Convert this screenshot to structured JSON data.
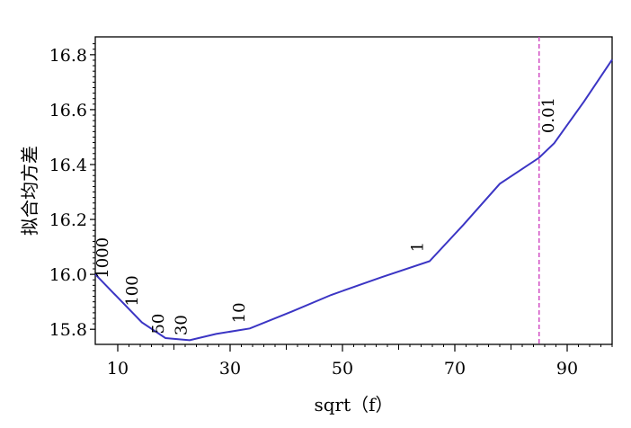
{
  "chart_data": {
    "type": "line",
    "xlabel": "sqrt（f）",
    "ylabel": "拟合均方差",
    "xlim": [
      6,
      98
    ],
    "ylim": [
      15.745,
      16.865
    ],
    "x_ticks": [
      10,
      30,
      50,
      70,
      90
    ],
    "y_ticks": [
      15.8,
      16.0,
      16.2,
      16.4,
      16.6,
      16.8
    ],
    "y_tick_labels": [
      "15.8",
      "16.0",
      "16.2",
      "16.4",
      "16.6",
      "16.8"
    ],
    "grid": false,
    "series": [
      {
        "color": "#3b35c4",
        "points": [
          {
            "x": 6,
            "y": 16.0
          },
          {
            "x": 14.3,
            "y": 15.825
          },
          {
            "x": 18.5,
            "y": 15.768
          },
          {
            "x": 22.8,
            "y": 15.76
          },
          {
            "x": 27.5,
            "y": 15.783
          },
          {
            "x": 33.5,
            "y": 15.803
          },
          {
            "x": 41,
            "y": 15.865
          },
          {
            "x": 48,
            "y": 15.925
          },
          {
            "x": 57,
            "y": 15.99
          },
          {
            "x": 65.5,
            "y": 16.048
          },
          {
            "x": 71.5,
            "y": 16.18
          },
          {
            "x": 78,
            "y": 16.33
          },
          {
            "x": 85,
            "y": 16.425
          },
          {
            "x": 87.7,
            "y": 16.478
          },
          {
            "x": 93,
            "y": 16.63
          },
          {
            "x": 98,
            "y": 16.782
          }
        ]
      }
    ],
    "annotations": [
      {
        "text": "1000",
        "x": 8.2,
        "y": 16.06
      },
      {
        "text": "100",
        "x": 13.5,
        "y": 15.94
      },
      {
        "text": "50",
        "x": 18.2,
        "y": 15.82
      },
      {
        "text": "30",
        "x": 22.2,
        "y": 15.815
      },
      {
        "text": "10",
        "x": 32.6,
        "y": 15.86
      },
      {
        "text": "1",
        "x": 64.3,
        "y": 16.1
      },
      {
        "text": "0.01",
        "x": 87.6,
        "y": 16.58
      }
    ],
    "reference_line": {
      "x": 85,
      "color": "#d24fc4",
      "style": "dashed"
    }
  }
}
